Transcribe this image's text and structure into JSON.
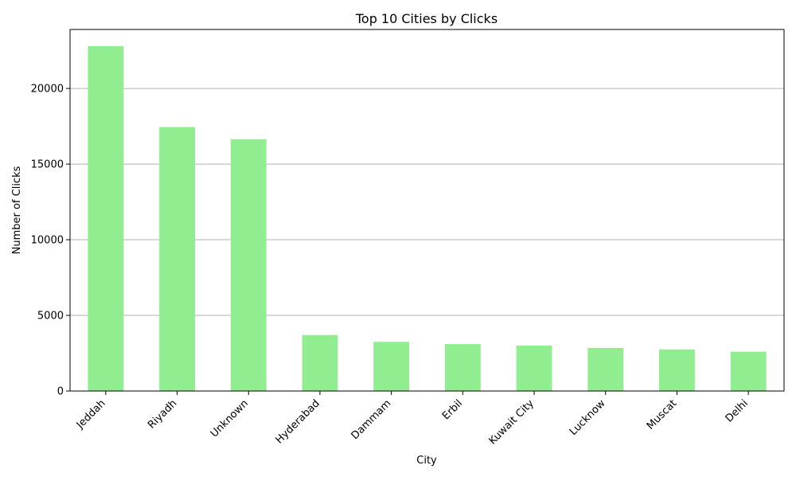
{
  "chart_data": {
    "type": "bar",
    "title": "Top 10 Cities by Clicks",
    "xlabel": "City",
    "ylabel": "Number of Clicks",
    "categories": [
      "Jeddah",
      "Riyadh",
      "Unknown",
      "Hyderabad",
      "Dammam",
      "Erbil",
      "Kuwait City",
      "Lucknow",
      "Muscat",
      "Delhi"
    ],
    "values": [
      22800,
      17450,
      16650,
      3700,
      3250,
      3100,
      3000,
      2850,
      2750,
      2600
    ],
    "ylim": [
      0,
      23900
    ],
    "yticks": [
      0,
      5000,
      10000,
      15000,
      20000
    ],
    "ytick_labels": [
      "0",
      "5000",
      "10000",
      "15000",
      "20000"
    ],
    "grid": "y",
    "bar_color": "#90ee90",
    "grid_color": "#b0b0b0"
  }
}
